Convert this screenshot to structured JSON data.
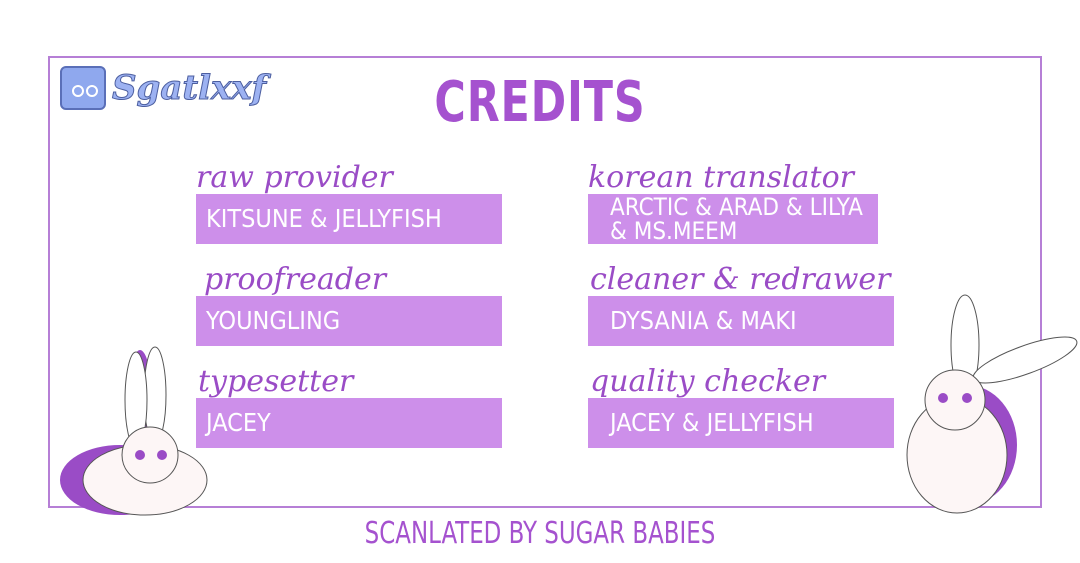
{
  "logo": {
    "text": "Sgatlxxf",
    "icon": "discord-icon"
  },
  "title": "CREDITS",
  "credits": [
    {
      "role": "raw provider",
      "names": "KITSUNE & JELLYFISH"
    },
    {
      "role": "korean translator",
      "names": "ARCTIC & ARAD & LILYA & MS.MEEM"
    },
    {
      "role": "proofreader",
      "names": "YOUNGLING"
    },
    {
      "role": "cleaner & redrawer",
      "names": "DYSANIA & MAKI"
    },
    {
      "role": "typesetter",
      "names": "JACEY"
    },
    {
      "role": "quality checker",
      "names": "JACEY & JELLYFISH"
    }
  ],
  "footer": "SCANLATED BY SUGAR BABIES",
  "colors": {
    "accent": "#a552cf",
    "box": "#cd8fea",
    "border": "#b67fd6"
  }
}
